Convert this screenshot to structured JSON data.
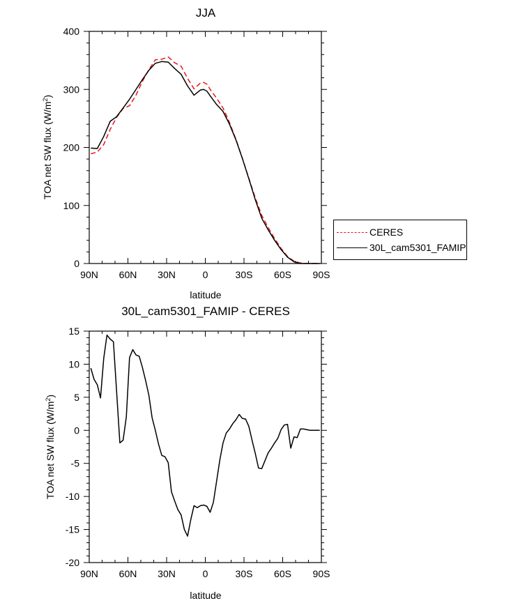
{
  "chart_data": [
    {
      "type": "line",
      "title": "JJA",
      "xlabel": "latitude",
      "ylabel": "TOA net SW flux (W/m²)",
      "xlim": [
        90,
        -90
      ],
      "ylim": [
        0,
        400
      ],
      "xticks": [
        90,
        60,
        30,
        0,
        -30,
        -60,
        -90
      ],
      "xtick_labels": [
        "90N",
        "60N",
        "30N",
        "0",
        "30S",
        "60S",
        "90S"
      ],
      "yticks": [
        0,
        100,
        200,
        300,
        400
      ],
      "ytick_labels": [
        "0",
        "100",
        "200",
        "300",
        "400"
      ],
      "legend_position": "outside-right",
      "series": [
        {
          "name": "CERES",
          "color": "#e8141c",
          "dash": "dashed",
          "x": [
            88.75,
            83.75,
            78.75,
            73.75,
            68.75,
            63.75,
            58.75,
            53.75,
            48.75,
            43.75,
            38.75,
            33.75,
            28.75,
            23.75,
            18.75,
            13.75,
            8.75,
            3.75,
            1.25,
            -1.25,
            -3.75,
            -8.75,
            -13.75,
            -18.75,
            -23.75,
            -28.75,
            -33.75,
            -38.75,
            -43.75,
            -48.75,
            -53.75,
            -58.75,
            -63.75,
            -68.75,
            -73.75,
            -78.75,
            -83.75,
            -88.75
          ],
          "y": [
            189,
            192,
            205,
            231,
            252,
            267,
            272,
            290,
            314,
            334,
            351,
            352,
            356,
            346,
            340,
            319,
            301,
            311,
            312,
            309,
            300,
            285,
            268,
            243,
            214,
            181,
            147,
            113,
            83,
            62,
            43,
            26,
            12,
            4,
            1,
            0,
            0,
            0
          ]
        },
        {
          "name": "30L_cam5301_FAMIP",
          "color": "#000000",
          "dash": "solid",
          "x": [
            88.75,
            83.75,
            78.75,
            73.75,
            68.75,
            63.75,
            58.75,
            53.75,
            48.75,
            43.75,
            38.75,
            33.75,
            28.75,
            23.75,
            18.75,
            13.75,
            8.75,
            3.75,
            1.25,
            -1.25,
            -3.75,
            -8.75,
            -13.75,
            -18.75,
            -23.75,
            -28.75,
            -33.75,
            -38.75,
            -43.75,
            -48.75,
            -53.75,
            -58.75,
            -63.75,
            -68.75,
            -73.75,
            -78.75,
            -83.75,
            -88.75
          ],
          "y": [
            199,
            198,
            219,
            245,
            253,
            268,
            283,
            300,
            317,
            333,
            345,
            348,
            347,
            336,
            326,
            306,
            290,
            299,
            300,
            297,
            289,
            274,
            262,
            240,
            213,
            181,
            146,
            110,
            78,
            58,
            40,
            24,
            11,
            3,
            0,
            0,
            0,
            0
          ]
        }
      ]
    },
    {
      "type": "line",
      "title": "30L_cam5301_FAMIP - CERES",
      "xlabel": "latitude",
      "ylabel": "TOA net SW flux (W/m²)",
      "xlim": [
        90,
        -90
      ],
      "ylim": [
        -20,
        15
      ],
      "xticks": [
        90,
        60,
        30,
        0,
        -30,
        -60,
        -90
      ],
      "xtick_labels": [
        "90N",
        "60N",
        "30N",
        "0",
        "30S",
        "60S",
        "90S"
      ],
      "yticks": [
        -20,
        -15,
        -10,
        -5,
        0,
        5,
        10,
        15
      ],
      "ytick_labels": [
        "-20",
        "-15",
        "-10",
        "-5",
        "0",
        "5",
        "10",
        "15"
      ],
      "series": [
        {
          "color": "#000000",
          "x": [
            88.75,
            86.25,
            83.75,
            81.25,
            78.75,
            76.25,
            73.75,
            71.25,
            68.75,
            66.25,
            63.75,
            61.25,
            58.75,
            56.25,
            53.75,
            51.25,
            48.75,
            46.25,
            43.75,
            41.25,
            38.75,
            36.25,
            33.75,
            31.25,
            28.75,
            26.25,
            23.75,
            21.25,
            18.75,
            16.25,
            13.75,
            11.25,
            8.75,
            6.25,
            3.75,
            1.25,
            -1.25,
            -3.75,
            -6.25,
            -8.75,
            -11.25,
            -13.75,
            -16.25,
            -18.75,
            -21.25,
            -23.75,
            -26.25,
            -28.75,
            -31.25,
            -33.75,
            -36.25,
            -38.75,
            -41.25,
            -43.75,
            -46.25,
            -48.75,
            -51.25,
            -53.75,
            -56.25,
            -58.75,
            -61.25,
            -63.75,
            -66.25,
            -68.75,
            -71.25,
            -73.75,
            -76.25,
            -78.75,
            -81.25,
            -83.75,
            -86.25,
            -88.75
          ],
          "y": [
            9.4,
            7.7,
            6.9,
            4.9,
            10.9,
            14.4,
            13.8,
            13.4,
            5.8,
            -1.9,
            -1.5,
            2.0,
            11.0,
            12.2,
            11.4,
            11.2,
            9.5,
            7.5,
            5.3,
            1.9,
            0.0,
            -2.1,
            -3.8,
            -4.0,
            -4.9,
            -9.3,
            -10.7,
            -12.0,
            -12.8,
            -15.0,
            -16.0,
            -13.5,
            -11.4,
            -11.7,
            -11.4,
            -11.3,
            -11.5,
            -12.4,
            -10.9,
            -7.7,
            -4.5,
            -1.9,
            -0.4,
            0.2,
            1.0,
            1.6,
            2.4,
            1.8,
            1.7,
            0.6,
            -1.5,
            -3.5,
            -5.7,
            -5.8,
            -4.6,
            -3.4,
            -2.7,
            -1.9,
            -1.2,
            0.1,
            0.8,
            0.9,
            -2.7,
            -1.0,
            -1.1,
            0.2,
            0.2,
            0.1,
            0.0,
            0.0,
            0.0,
            0.0
          ]
        }
      ]
    }
  ]
}
